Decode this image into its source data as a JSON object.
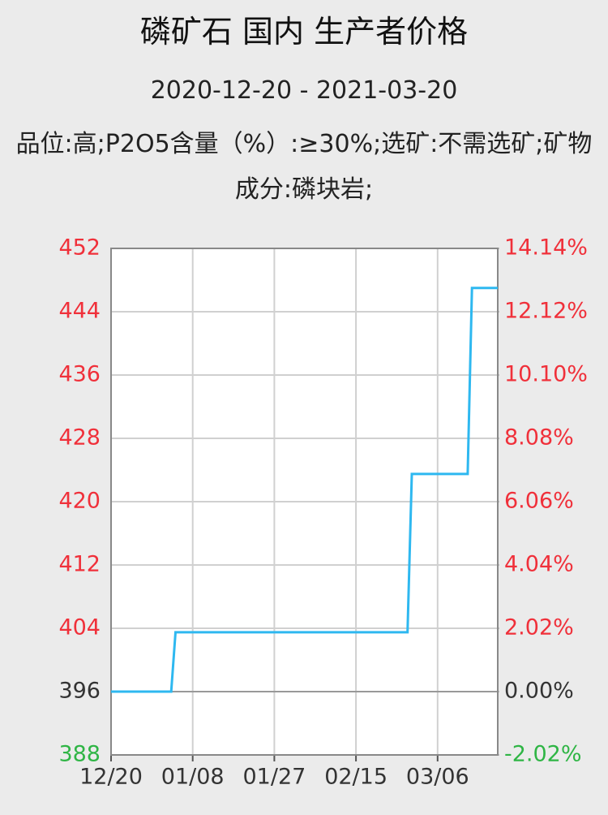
{
  "chart_data": {
    "type": "line",
    "title": "磷矿石 国内 生产者价格",
    "subtitle": "2020-12-20 - 2021-03-20",
    "description": "品位:高;P2O5含量（%）:≥30%;选矿:不需选矿;矿物成分:磷块岩;",
    "x": [
      "12/20",
      "01/03",
      "01/04",
      "02/27",
      "02/28",
      "03/13",
      "03/14",
      "03/20"
    ],
    "series": [
      {
        "color": "#2eb8f0",
        "values": [
          396,
          396,
          403.5,
          403.5,
          423.5,
          423.5,
          447,
          447
        ]
      }
    ],
    "xlim": [
      "12/20",
      "03/20"
    ],
    "xticks": [
      "12/20",
      "01/08",
      "01/27",
      "02/15",
      "03/06"
    ],
    "ylim": [
      388,
      452
    ],
    "yticks": [
      388,
      396,
      404,
      412,
      420,
      428,
      436,
      444,
      452
    ],
    "y2lim": [
      -2.02,
      14.14
    ],
    "y2ticks": [
      {
        "value": -2.02,
        "label": "-2.02%"
      },
      {
        "value": 0,
        "label": "0.00%"
      },
      {
        "value": 2.02,
        "label": "2.02%"
      },
      {
        "value": 4.04,
        "label": "4.04%"
      },
      {
        "value": 6.06,
        "label": "6.06%"
      },
      {
        "value": 8.08,
        "label": "8.08%"
      },
      {
        "value": 10.1,
        "label": "10.10%"
      },
      {
        "value": 12.12,
        "label": "12.12%"
      },
      {
        "value": 14.14,
        "label": "14.14%"
      }
    ],
    "up_color": "#f0303a",
    "down_color": "#2fb545",
    "flat_color": "#333333",
    "grid": true
  }
}
